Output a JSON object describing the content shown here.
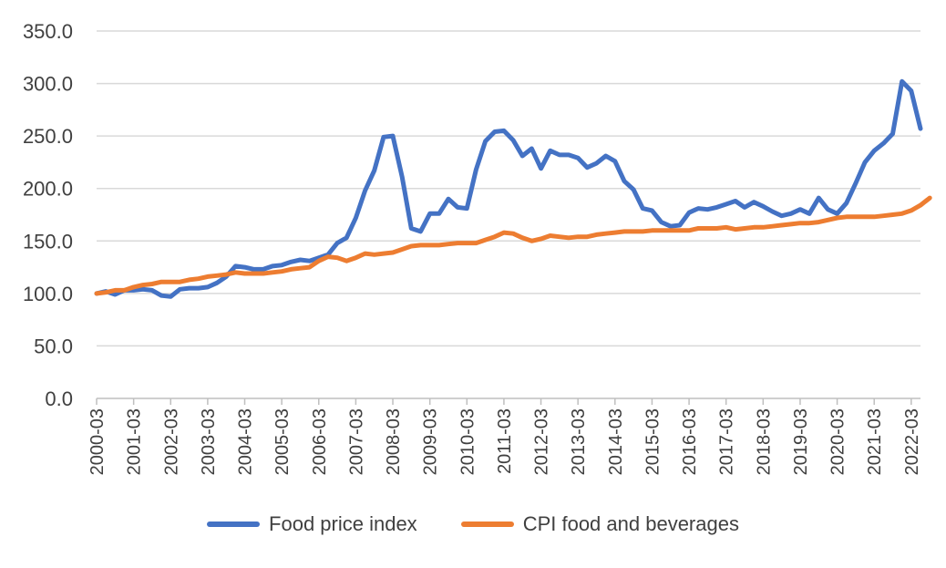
{
  "chart_data": {
    "type": "line",
    "title": "",
    "xlabel": "",
    "ylabel": "",
    "ylim": [
      0,
      350
    ],
    "yticks": [
      "0.0",
      "50.0",
      "100.0",
      "150.0",
      "200.0",
      "250.0",
      "300.0",
      "350.0"
    ],
    "grid": true,
    "legend_position": "bottom",
    "x_tick_labels": [
      "2000-03",
      "2001-03",
      "2002-03",
      "2003-03",
      "2004-03",
      "2005-03",
      "2006-03",
      "2007-03",
      "2008-03",
      "2009-03",
      "2010-03",
      "2011-03",
      "2012-03",
      "2013-03",
      "2014-03",
      "2015-03",
      "2016-03",
      "2017-03",
      "2018-03",
      "2019-03",
      "2020-03",
      "2021-03",
      "2022-03"
    ],
    "x_start": "2000-03",
    "x_frequency": "quarterly",
    "series": [
      {
        "name": "Food price index",
        "color": "#4472C4",
        "values": [
          100,
          102,
          99,
          103,
          103,
          104,
          103,
          98,
          97,
          104,
          105,
          105,
          106,
          110,
          116,
          126,
          125,
          123,
          123,
          126,
          127,
          130,
          132,
          131,
          134,
          137,
          148,
          153,
          172,
          198,
          217,
          249,
          250,
          211,
          162,
          159,
          176,
          176,
          190,
          182,
          181,
          218,
          245,
          254,
          255,
          246,
          231,
          238,
          219,
          236,
          232,
          232,
          229,
          220,
          224,
          231,
          226,
          207,
          199,
          181,
          179,
          168,
          164,
          165,
          177,
          181,
          180,
          182,
          185,
          188,
          182,
          187,
          183,
          178,
          174,
          176,
          180,
          176,
          191,
          180,
          176,
          186,
          205,
          225,
          236,
          243,
          252,
          302,
          293,
          257
        ]
      },
      {
        "name": "CPI food and beverages",
        "color": "#ED7D31",
        "values": [
          100,
          101,
          103,
          103,
          106,
          108,
          109,
          111,
          111,
          111,
          113,
          114,
          116,
          117,
          118,
          120,
          119,
          119,
          119,
          120,
          121,
          123,
          124,
          125,
          131,
          135,
          134,
          131,
          134,
          138,
          137,
          138,
          139,
          142,
          145,
          146,
          146,
          146,
          147,
          148,
          148,
          148,
          151,
          154,
          158,
          157,
          153,
          150,
          152,
          155,
          154,
          153,
          154,
          154,
          156,
          157,
          158,
          159,
          159,
          159,
          160,
          160,
          160,
          160,
          160,
          162,
          162,
          162,
          163,
          161,
          162,
          163,
          163,
          164,
          165,
          166,
          167,
          167,
          168,
          170,
          172,
          173,
          173,
          173,
          173,
          174,
          175,
          176,
          179,
          184,
          191
        ]
      }
    ]
  }
}
